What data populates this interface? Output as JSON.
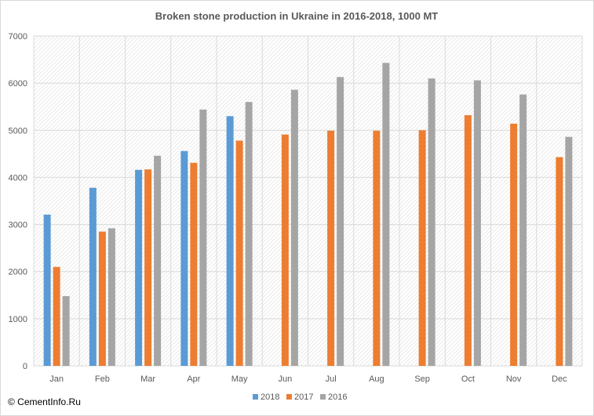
{
  "chart_data": {
    "type": "bar",
    "title": "Broken stone production in Ukraine in 2016-2018,  1000  MT",
    "categories": [
      "Jan",
      "Feb",
      "Mar",
      "Apr",
      "May",
      "Jun",
      "Jul",
      "Aug",
      "Sep",
      "Oct",
      "Nov",
      "Dec"
    ],
    "series": [
      {
        "name": "2018",
        "color": "#5b9bd5",
        "values": [
          3210,
          3780,
          4160,
          4560,
          5300,
          null,
          null,
          null,
          null,
          null,
          null,
          null
        ]
      },
      {
        "name": "2017",
        "color": "#ed7d31",
        "values": [
          2100,
          2850,
          4170,
          4310,
          4780,
          4910,
          4990,
          4990,
          5000,
          5320,
          5140,
          4430
        ]
      },
      {
        "name": "2016",
        "color": "#a5a5a5",
        "values": [
          1480,
          2920,
          4460,
          5440,
          5600,
          5860,
          6130,
          6430,
          6100,
          6060,
          5760,
          4860
        ]
      }
    ],
    "ylim": [
      0,
      7000
    ],
    "yticks": [
      "0",
      "1000",
      "2000",
      "3000",
      "4000",
      "5000",
      "6000",
      "7000"
    ],
    "xlabel": "",
    "ylabel": "",
    "grid": true,
    "legend_position": "bottom"
  },
  "watermark": "© CementInfo.Ru"
}
